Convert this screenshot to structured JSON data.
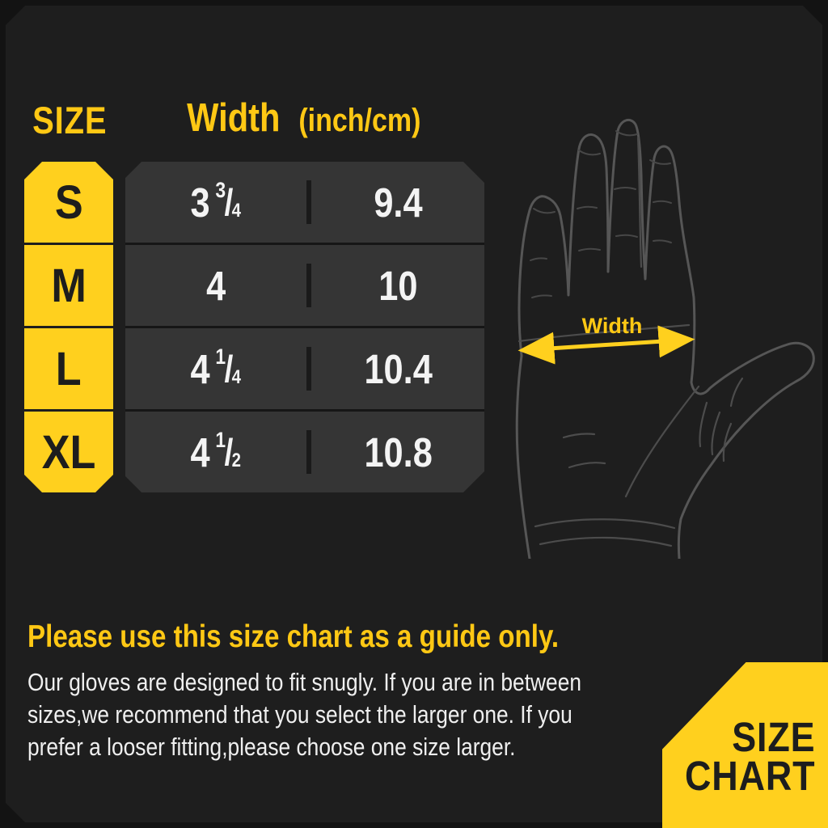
{
  "chart_data": {
    "type": "table",
    "title": "SIZE CHART",
    "columns": [
      "SIZE",
      "Width (inch)",
      "Width (cm)"
    ],
    "rows": [
      [
        "S",
        "3 3/4",
        "9.4"
      ],
      [
        "M",
        "4",
        "10"
      ],
      [
        "L",
        "4 1/4",
        "10.4"
      ],
      [
        "XL",
        "4 1/2",
        "10.8"
      ]
    ]
  },
  "colors": {
    "yellow": "#ffd01e",
    "header_yellow": "#ffc814",
    "row_gray": "#353535",
    "background": "#1e1e1e",
    "text_white": "#f4f4f4",
    "badge_text": "#1d1d1d"
  },
  "header": {
    "size_col_label": "SIZE",
    "width_label": "Width",
    "width_unit": "(inch/cm)"
  },
  "rows": [
    {
      "size": "S",
      "inch_whole": "3",
      "frac_num": "3",
      "frac_den": "4",
      "cm": "9.4"
    },
    {
      "size": "M",
      "inch_whole": "4",
      "frac_num": "",
      "frac_den": "",
      "cm": "10"
    },
    {
      "size": "L",
      "inch_whole": "4",
      "frac_num": "1",
      "frac_den": "4",
      "cm": "10.4"
    },
    {
      "size": "XL",
      "inch_whole": "4",
      "frac_num": "1",
      "frac_den": "2",
      "cm": "10.8"
    }
  ],
  "hand": {
    "measure_label": "Width"
  },
  "footer": {
    "heading": "Please use this size chart as a guide only.",
    "lines": [
      "Our gloves are designed to fit snugly. If you are in between",
      "sizes,we recommend that you select the larger one. If you",
      "prefer a looser fitting,please choose one size larger."
    ]
  },
  "ribbon": {
    "line1": "SIZE",
    "line2": "CHART"
  }
}
